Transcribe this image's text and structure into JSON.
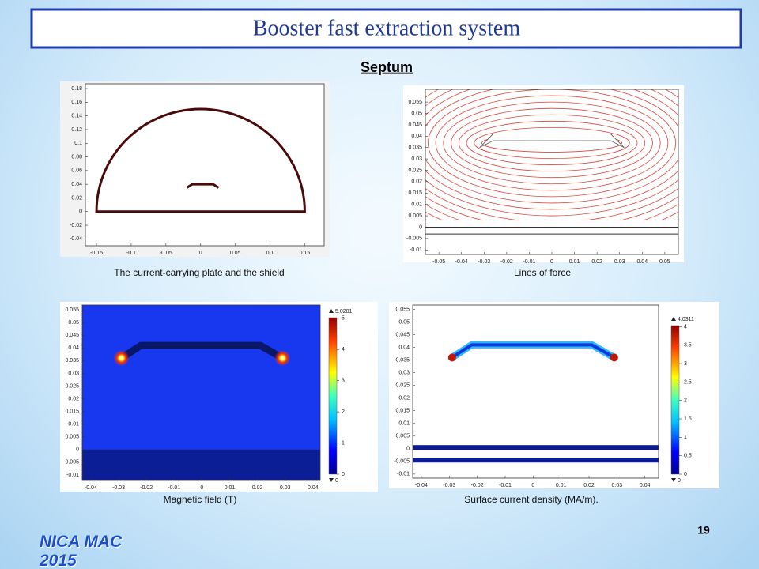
{
  "header": {
    "title": "Booster fast extraction system",
    "subtitle": "Septum"
  },
  "panels": [
    {
      "caption": "The current-carrying plate and the shield",
      "xlim": [
        -0.166,
        0.178
      ],
      "ylim": [
        -0.05,
        0.187
      ],
      "xticks": [
        -0.15,
        -0.1,
        -0.05,
        0,
        0.05,
        0.1,
        0.15
      ],
      "yticks": [
        -0.04,
        -0.02,
        0,
        0.02,
        0.04,
        0.06,
        0.08,
        0.1,
        0.12,
        0.14,
        0.16,
        0.18
      ]
    },
    {
      "caption": "Lines of force",
      "xlim": [
        -0.056,
        0.056
      ],
      "ylim": [
        -0.012,
        0.0606
      ],
      "xticks": [
        -0.05,
        -0.04,
        -0.03,
        -0.02,
        -0.01,
        0,
        0.01,
        0.02,
        0.03,
        0.04,
        0.05
      ],
      "yticks": [
        -0.01,
        -0.005,
        0,
        0.005,
        0.01,
        0.015,
        0.02,
        0.025,
        0.03,
        0.035,
        0.04,
        0.045,
        0.05,
        0.055
      ]
    },
    {
      "caption": "Magnetic field (T)",
      "xlim": [
        -0.0431,
        0.0426
      ],
      "ylim": [
        -0.0122,
        0.0569
      ],
      "xticks": [
        -0.04,
        -0.03,
        -0.02,
        -0.01,
        0,
        0.01,
        0.02,
        0.03,
        0.04
      ],
      "yticks": [
        -0.01,
        -0.005,
        0,
        0.005,
        0.01,
        0.015,
        0.02,
        0.025,
        0.03,
        0.035,
        0.04,
        0.045,
        0.05,
        0.055
      ],
      "colorbar": {
        "max": 5.0201,
        "min": 0,
        "ticks": [
          0,
          1,
          2,
          3,
          4,
          5
        ]
      }
    },
    {
      "caption": "Surface current density (MA/m).",
      "xlim": [
        -0.0431,
        0.0449
      ],
      "ylim": [
        -0.0116,
        0.0567
      ],
      "xticks": [
        -0.04,
        -0.03,
        -0.02,
        -0.01,
        0,
        0.01,
        0.02,
        0.03,
        0.04
      ],
      "yticks": [
        -0.01,
        -0.005,
        0,
        0.005,
        0.01,
        0.015,
        0.02,
        0.025,
        0.03,
        0.035,
        0.04,
        0.045,
        0.05,
        0.055
      ],
      "colorbar": {
        "max": 4.0311,
        "min": 0,
        "ticks": [
          0,
          0.5,
          1,
          1.5,
          2,
          2.5,
          3,
          3.5,
          4
        ]
      }
    }
  ],
  "page_number": "19",
  "footer": "NICA MAC 2015"
}
